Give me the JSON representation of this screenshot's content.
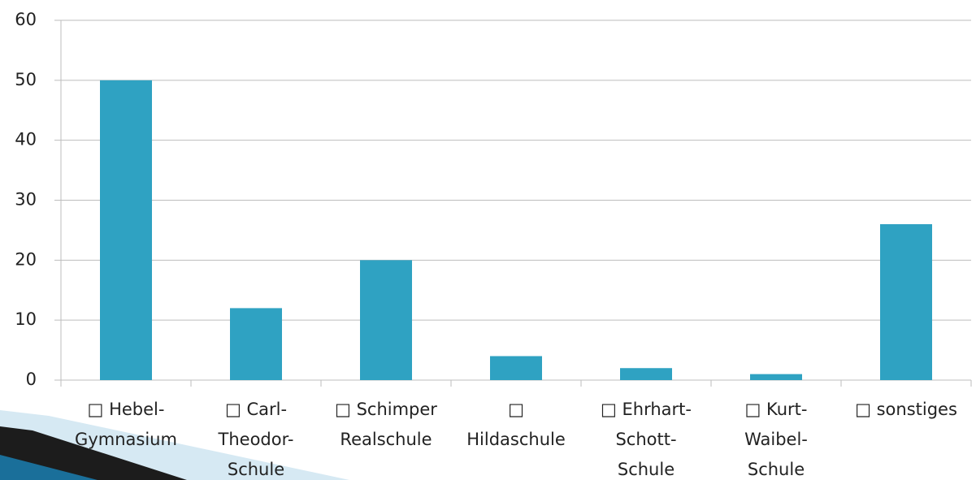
{
  "chart_data": {
    "type": "bar",
    "categories": [
      "□ Hebel-\nGymnasium",
      "□ Carl-\nTheodor-\nSchule",
      "□ Schimper\nRealschule",
      "□\nHildaschule",
      "□ Ehrhart-\nSchott-\nSchule",
      "□ Kurt-\nWaibel-\nSchule",
      "□ sonstiges"
    ],
    "values": [
      50,
      12,
      20,
      4,
      2,
      1,
      26
    ],
    "color": "#2fa2c2",
    "ylim": [
      0,
      60
    ],
    "yticks": [
      0,
      10,
      20,
      30,
      40,
      50,
      60
    ],
    "grid": true
  }
}
